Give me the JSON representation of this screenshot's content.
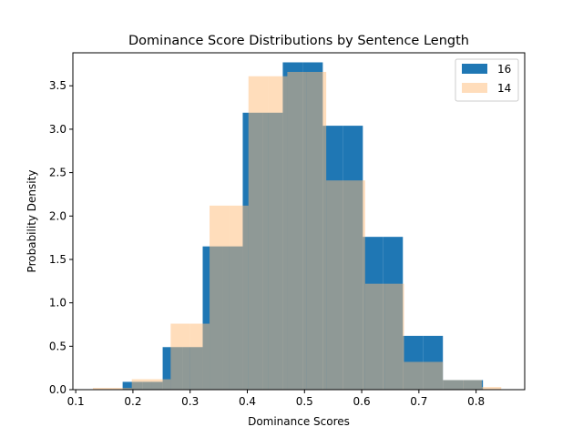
{
  "chart_data": {
    "type": "bar",
    "title": "Dominance Score Distributions by Sentence Length",
    "xlabel": "Dominance Scores",
    "ylabel": "Probability Density",
    "xlim": [
      0.095,
      0.885
    ],
    "ylim": [
      0,
      3.88
    ],
    "xticks": [
      "0.1",
      "0.2",
      "0.3",
      "0.4",
      "0.5",
      "0.6",
      "0.7",
      "0.8"
    ],
    "yticks": [
      "0.0",
      "0.5",
      "1.0",
      "1.5",
      "2.0",
      "2.5",
      "3.0",
      "3.5"
    ],
    "legend_position": "top-right",
    "series": [
      {
        "name": "16",
        "color": "#1f77b4",
        "alpha": 1.0,
        "bins": [
          [
            0.182,
            0.217,
            0.09
          ],
          [
            0.217,
            0.252,
            0.09
          ],
          [
            0.252,
            0.287,
            0.49
          ],
          [
            0.287,
            0.322,
            0.49
          ],
          [
            0.322,
            0.357,
            1.65
          ],
          [
            0.357,
            0.392,
            1.65
          ],
          [
            0.392,
            0.427,
            3.19
          ],
          [
            0.427,
            0.462,
            3.19
          ],
          [
            0.462,
            0.497,
            3.77
          ],
          [
            0.497,
            0.532,
            3.77
          ],
          [
            0.532,
            0.567,
            3.04
          ],
          [
            0.567,
            0.602,
            3.04
          ],
          [
            0.602,
            0.637,
            1.76
          ],
          [
            0.637,
            0.672,
            1.76
          ],
          [
            0.672,
            0.707,
            0.62
          ],
          [
            0.707,
            0.742,
            0.62
          ],
          [
            0.742,
            0.777,
            0.11
          ],
          [
            0.777,
            0.812,
            0.11
          ]
        ]
      },
      {
        "name": "14",
        "color": "#ffbb78",
        "alpha": 0.5,
        "bins": [
          [
            0.13,
            0.164,
            0.02
          ],
          [
            0.164,
            0.198,
            0.02
          ],
          [
            0.198,
            0.232,
            0.12
          ],
          [
            0.232,
            0.266,
            0.12
          ],
          [
            0.266,
            0.3,
            0.76
          ],
          [
            0.3,
            0.334,
            0.76
          ],
          [
            0.334,
            0.368,
            2.12
          ],
          [
            0.368,
            0.402,
            2.12
          ],
          [
            0.402,
            0.436,
            3.61
          ],
          [
            0.436,
            0.47,
            3.61
          ],
          [
            0.47,
            0.504,
            3.66
          ],
          [
            0.504,
            0.538,
            3.66
          ],
          [
            0.538,
            0.572,
            2.41
          ],
          [
            0.572,
            0.606,
            2.41
          ],
          [
            0.606,
            0.64,
            1.22
          ],
          [
            0.64,
            0.674,
            1.22
          ],
          [
            0.674,
            0.708,
            0.32
          ],
          [
            0.708,
            0.742,
            0.32
          ],
          [
            0.742,
            0.776,
            0.11
          ],
          [
            0.776,
            0.81,
            0.11
          ],
          [
            0.81,
            0.844,
            0.03
          ]
        ]
      }
    ]
  }
}
